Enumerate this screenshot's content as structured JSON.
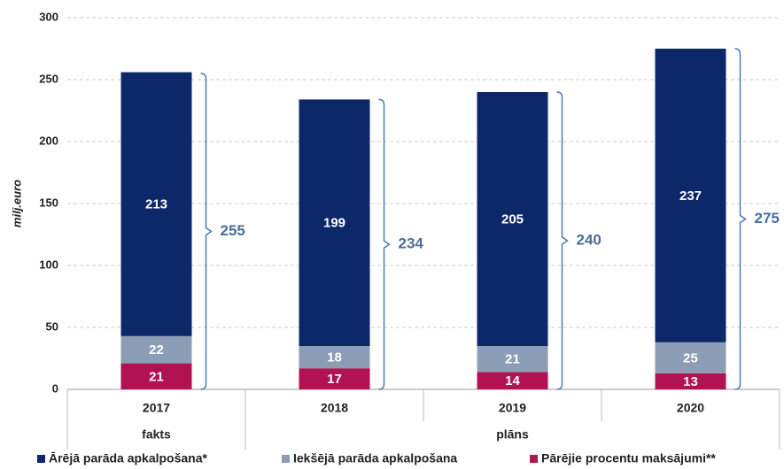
{
  "chart_data": {
    "type": "stacked_bar",
    "ylabel": "milj.euro",
    "categories": [
      "2017",
      "2018",
      "2019",
      "2020"
    ],
    "groups": [
      "fakts",
      "plāns"
    ],
    "series": [
      {
        "name": "Pārējie procentu maksājumi**",
        "color": "#b01252",
        "values": [
          21,
          17,
          14,
          13
        ]
      },
      {
        "name": "Iekšējā parāda apkalpošana",
        "color": "#8c9db6",
        "values": [
          22,
          18,
          21,
          25
        ]
      },
      {
        "name": "Ārējā parāda apkalpošana*",
        "color": "#0c2868",
        "values": [
          213,
          199,
          205,
          237
        ]
      }
    ],
    "totals": [
      255,
      234,
      240,
      275
    ],
    "ylim": [
      0,
      300
    ],
    "yticks": [
      0,
      50,
      100,
      150,
      200,
      250,
      300
    ],
    "grid": true
  }
}
